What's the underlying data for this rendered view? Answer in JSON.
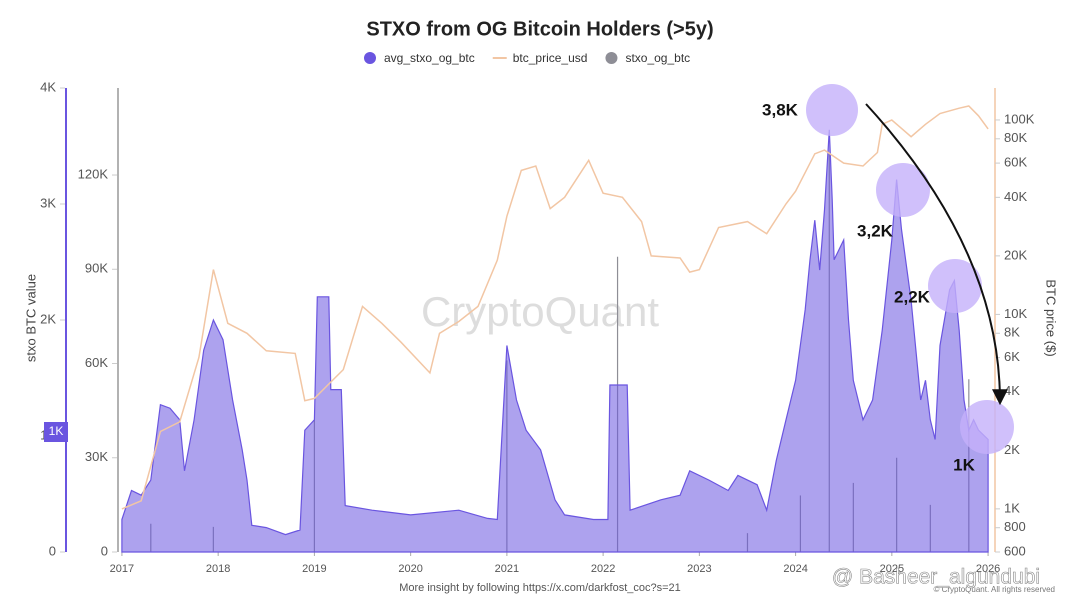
{
  "chart_data": {
    "type": "area",
    "title": "STXO from OG Bitcoin Holders (>5y)",
    "y_axis_label": "stxo BTC value",
    "y2_axis_label": "BTC price ($)",
    "current_value_label": "1K",
    "watermark": "CryptoQuant",
    "footer": "More insight by following https://x.com/darkfost_coc?s=21",
    "copyright": "© CryptoQuant. All rights reserved",
    "overlay_handle": "@ Basheer_algundubi",
    "annotations": [
      "3,8K",
      "3,2K",
      "2,2K",
      "1K"
    ],
    "legend_position": "top",
    "xlim": [
      2016.98,
      2026.02
    ],
    "xticks": [
      2017,
      2018,
      2019,
      2020,
      2021,
      2022,
      2023,
      2024,
      2025,
      2026
    ],
    "ylim": [
      0,
      4000
    ],
    "yticks": [
      0,
      {
        "value": 1000,
        "label": "1K"
      },
      {
        "value": 2000,
        "label": "2K"
      },
      {
        "value": 3000,
        "label": "3K"
      },
      {
        "value": 4000,
        "label": "4K"
      }
    ],
    "y3lim": [
      0,
      147700
    ],
    "y3ticks": [
      0,
      {
        "value": 30000,
        "label": "30K"
      },
      {
        "value": 60000,
        "label": "60K"
      },
      {
        "value": 90000,
        "label": "90K"
      },
      {
        "value": 120000,
        "label": "120K"
      }
    ],
    "y2lim": [
      600,
      146000
    ],
    "y2log": true,
    "y2ticks": [
      600,
      800,
      {
        "value": 1000,
        "label": "1K"
      },
      {
        "value": 2000,
        "label": "2K"
      },
      {
        "value": 4000,
        "label": "4K"
      },
      {
        "value": 6000,
        "label": "6K"
      },
      {
        "value": 8000,
        "label": "8K"
      },
      {
        "value": 10000,
        "label": "10K"
      },
      {
        "value": 20000,
        "label": "20K"
      },
      {
        "value": 40000,
        "label": "40K"
      },
      {
        "value": 60000,
        "label": "60K"
      },
      {
        "value": 80000,
        "label": "80K"
      },
      {
        "value": 100000,
        "label": "100K"
      }
    ],
    "series": [
      {
        "name": "avg_stxo_og_btc",
        "color": "#6a55e0",
        "kind": "area",
        "x": [
          2017.0,
          2017.1,
          2017.2,
          2017.3,
          2017.4,
          2017.5,
          2017.6,
          2017.65,
          2017.75,
          2017.85,
          2017.95,
          2018.05,
          2018.15,
          2018.25,
          2018.3,
          2018.35,
          2018.5,
          2018.7,
          2018.85,
          2018.9,
          2019.0,
          2019.03,
          2019.15,
          2019.17,
          2019.28,
          2019.32,
          2019.6,
          2020.0,
          2020.5,
          2020.8,
          2020.9,
          2021.0,
          2021.1,
          2021.2,
          2021.35,
          2021.5,
          2021.6,
          2021.9,
          2022.05,
          2022.07,
          2022.25,
          2022.28,
          2022.6,
          2022.8,
          2022.9,
          2023.1,
          2023.3,
          2023.4,
          2023.5,
          2023.6,
          2023.7,
          2023.8,
          2023.9,
          2024.0,
          2024.1,
          2024.15,
          2024.2,
          2024.25,
          2024.3,
          2024.35,
          2024.38,
          2024.4,
          2024.5,
          2024.55,
          2024.6,
          2024.7,
          2024.8,
          2024.9,
          2025.0,
          2025.05,
          2025.1,
          2025.2,
          2025.3,
          2025.35,
          2025.4,
          2025.45,
          2025.5,
          2025.6,
          2025.65,
          2025.7,
          2025.75,
          2025.8,
          2025.85,
          2025.9,
          2026.0
        ],
        "values": [
          280,
          530,
          490,
          620,
          1270,
          1240,
          1140,
          700,
          1140,
          1740,
          2000,
          1830,
          1310,
          880,
          620,
          230,
          210,
          150,
          190,
          1050,
          1140,
          2200,
          2200,
          1400,
          1400,
          400,
          360,
          320,
          360,
          290,
          280,
          1780,
          1310,
          1050,
          880,
          450,
          320,
          280,
          280,
          1440,
          1440,
          360,
          450,
          490,
          700,
          620,
          530,
          660,
          620,
          580,
          360,
          790,
          1140,
          1480,
          2090,
          2520,
          2860,
          2430,
          2950,
          3640,
          3040,
          2520,
          2690,
          2000,
          1480,
          1140,
          1310,
          1910,
          2690,
          3210,
          2780,
          2170,
          1310,
          1480,
          1140,
          970,
          1780,
          2260,
          2340,
          1910,
          1310,
          1050,
          1140,
          1050,
          970
        ]
      },
      {
        "name": "btc_price_usd",
        "color": "#f2c6a4",
        "kind": "line",
        "axis": "y2",
        "x": [
          2017.0,
          2017.2,
          2017.4,
          2017.6,
          2017.8,
          2017.95,
          2018.1,
          2018.3,
          2018.5,
          2018.8,
          2018.9,
          2019.0,
          2019.3,
          2019.5,
          2019.7,
          2019.9,
          2020.2,
          2020.3,
          2020.5,
          2020.7,
          2020.9,
          2021.0,
          2021.15,
          2021.3,
          2021.45,
          2021.6,
          2021.85,
          2022.0,
          2022.2,
          2022.4,
          2022.5,
          2022.8,
          2022.9,
          2023.0,
          2023.2,
          2023.5,
          2023.7,
          2023.9,
          2024.0,
          2024.2,
          2024.3,
          2024.5,
          2024.7,
          2024.85,
          2024.9,
          2025.0,
          2025.2,
          2025.35,
          2025.5,
          2025.7,
          2025.8,
          2025.9,
          2026.0
        ],
        "values": [
          1000,
          1100,
          2500,
          2800,
          6000,
          17000,
          9000,
          8000,
          6500,
          6300,
          3600,
          3700,
          5200,
          11000,
          9000,
          7200,
          5000,
          8000,
          9200,
          11000,
          19000,
          32000,
          55000,
          58000,
          35000,
          40000,
          62000,
          42000,
          40000,
          30000,
          20000,
          19500,
          16500,
          17000,
          28000,
          30000,
          26000,
          37000,
          43000,
          67000,
          70000,
          60000,
          58000,
          68000,
          95000,
          100000,
          82000,
          95000,
          108000,
          115000,
          118000,
          105000,
          90000
        ]
      },
      {
        "name": "stxo_og_btc",
        "color": "#8e8e96",
        "kind": "spikes",
        "axis": "y3",
        "x": [
          2017.3,
          2017.95,
          2019.0,
          2021.0,
          2022.15,
          2023.5,
          2024.05,
          2024.35,
          2024.6,
          2025.05,
          2025.4,
          2025.8
        ],
        "values": [
          9000,
          8000,
          42000,
          61000,
          94000,
          6000,
          18000,
          127000,
          22000,
          30000,
          15000,
          55000
        ]
      }
    ]
  }
}
